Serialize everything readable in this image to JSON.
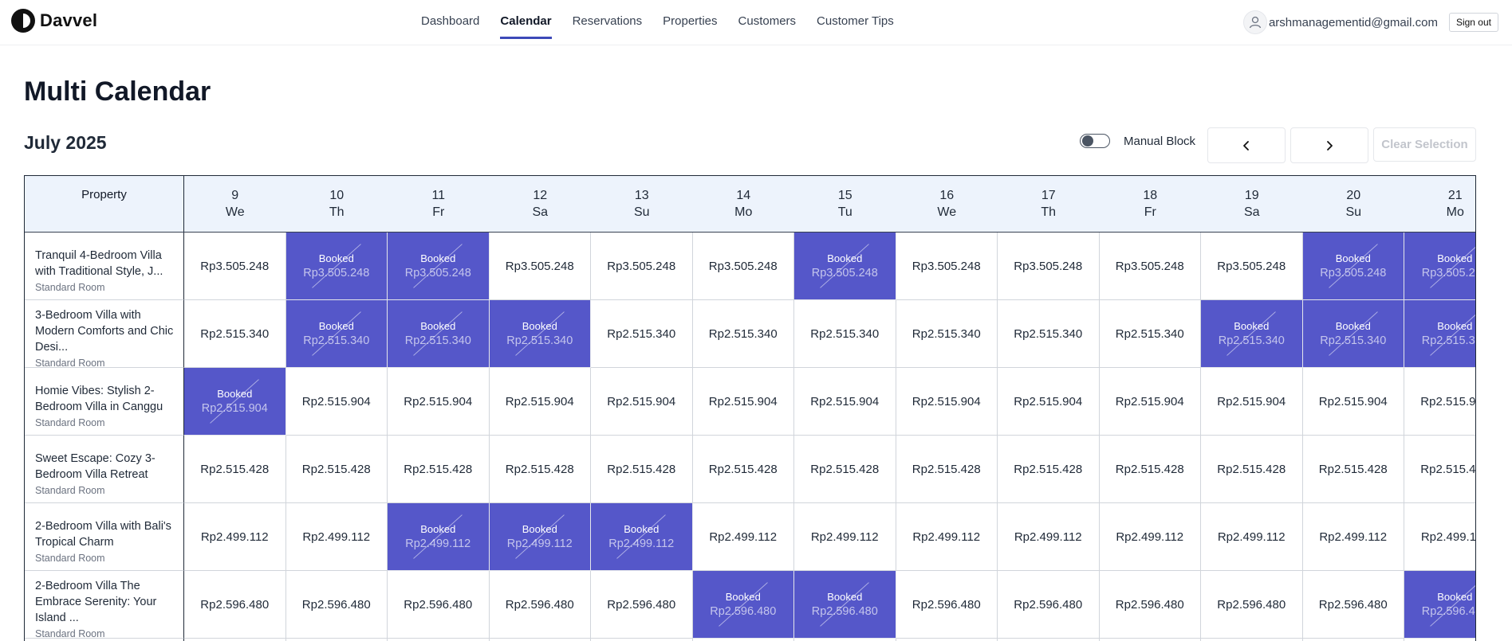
{
  "app": {
    "name": "Davvel"
  },
  "nav": {
    "items": [
      {
        "label": "Dashboard",
        "active": false
      },
      {
        "label": "Calendar",
        "active": true
      },
      {
        "label": "Reservations",
        "active": false
      },
      {
        "label": "Properties",
        "active": false
      },
      {
        "label": "Customers",
        "active": false
      },
      {
        "label": "Customer Tips",
        "active": false
      }
    ]
  },
  "account": {
    "email": "arshmanagementid@gmail.com",
    "sign_out_label": "Sign out"
  },
  "page": {
    "title": "Multi Calendar",
    "month_label": "July 2025"
  },
  "controls": {
    "manual_block_label": "Manual Block",
    "manual_block_on": false,
    "clear_label": "Clear Selection"
  },
  "table": {
    "property_header": "Property",
    "days": [
      {
        "day": "9",
        "weekday": "We"
      },
      {
        "day": "10",
        "weekday": "Th"
      },
      {
        "day": "11",
        "weekday": "Fr"
      },
      {
        "day": "12",
        "weekday": "Sa"
      },
      {
        "day": "13",
        "weekday": "Su"
      },
      {
        "day": "14",
        "weekday": "Mo"
      },
      {
        "day": "15",
        "weekday": "Tu"
      },
      {
        "day": "16",
        "weekday": "We"
      },
      {
        "day": "17",
        "weekday": "Th"
      },
      {
        "day": "18",
        "weekday": "Fr"
      },
      {
        "day": "19",
        "weekday": "Sa"
      },
      {
        "day": "20",
        "weekday": "Su"
      },
      {
        "day": "21",
        "weekday": "Mo"
      }
    ],
    "booked_label": "Booked",
    "properties": [
      {
        "name": "Tranquil 4-Bedroom Villa with Traditional Style, J...",
        "room_type": "Standard Room",
        "price": "Rp3.505.248",
        "booked_days": [
          "10",
          "11",
          "15",
          "20",
          "21"
        ]
      },
      {
        "name": "3-Bedroom Villa with Modern Comforts and Chic Desi...",
        "room_type": "Standard Room",
        "price": "Rp2.515.340",
        "booked_days": [
          "10",
          "11",
          "12",
          "19",
          "20",
          "21"
        ]
      },
      {
        "name": "Homie Vibes: Stylish 2-Bedroom Villa in Canggu",
        "room_type": "Standard Room",
        "price": "Rp2.515.904",
        "booked_days": [
          "9"
        ]
      },
      {
        "name": "Sweet Escape: Cozy 3-Bedroom Villa Retreat",
        "room_type": "Standard Room",
        "price": "Rp2.515.428",
        "booked_days": []
      },
      {
        "name": "2-Bedroom Villa with Bali's Tropical Charm",
        "room_type": "Standard Room",
        "price": "Rp2.499.112",
        "booked_days": [
          "11",
          "12",
          "13"
        ]
      },
      {
        "name": "2-Bedroom Villa The Embrace Serenity: Your Island ...",
        "room_type": "Standard Room",
        "price": "Rp2.596.480",
        "booked_days": [
          "14",
          "15",
          "21"
        ]
      }
    ]
  }
}
